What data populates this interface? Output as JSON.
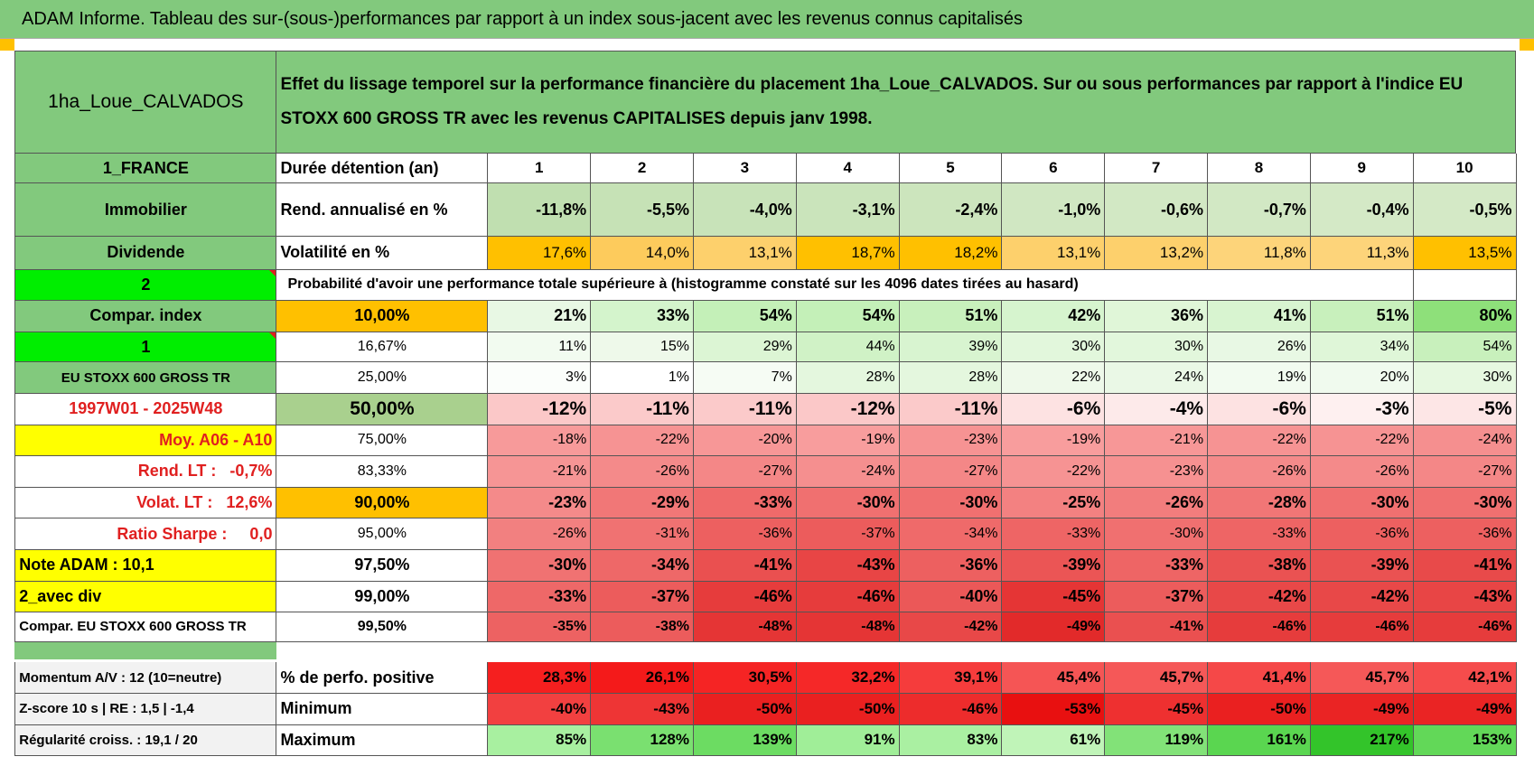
{
  "title": "ADAM Informe. Tableau des sur-(sous-)performances par rapport à un index sous-jacent avec les revenus connus capitalisés",
  "header": {
    "left": "1ha_Loue_CALVADOS",
    "text": "Effet du lissage temporel sur la performance financière du placement 1ha_Loue_CALVADOS. Sur ou sous performances par rapport à l'indice EU STOXX 600 GROSS TR avec les revenus CAPITALISES depuis janv 1998."
  },
  "rows": [
    {
      "label": "1_FRANCE",
      "name": "Durée détention (an)",
      "values": [
        1,
        2,
        3,
        4,
        5,
        6,
        7,
        8,
        9,
        10
      ]
    },
    {
      "label": "Immobilier",
      "name": "Rend. annualisé en %",
      "values": [
        "-11,8%",
        "-5,5%",
        "-4,0%",
        "-3,1%",
        "-2,4%",
        "-1,0%",
        "-0,6%",
        "-0,7%",
        "-0,4%",
        "-0,5%"
      ]
    },
    {
      "label": "Dividende",
      "name": "Volatilité en %",
      "values": [
        "17,6%",
        "14,0%",
        "13,1%",
        "18,7%",
        "18,2%",
        "13,1%",
        "13,2%",
        "11,8%",
        "11,3%",
        "13,5%"
      ]
    },
    {
      "label": "2",
      "note": "Probabilité d'avoir une performance totale supérieure à (histogramme constaté sur les 4096 dates tirées au hasard)"
    },
    {
      "label": "Compar. index",
      "name": "10,00%",
      "values": [
        "21%",
        "33%",
        "54%",
        "54%",
        "51%",
        "42%",
        "36%",
        "41%",
        "51%",
        "80%"
      ]
    },
    {
      "label": "1",
      "name": "16,67%",
      "values": [
        "11%",
        "15%",
        "29%",
        "44%",
        "39%",
        "30%",
        "30%",
        "26%",
        "34%",
        "54%"
      ]
    },
    {
      "label": "EU STOXX 600 GROSS TR",
      "name": "25,00%",
      "values": [
        "3%",
        "1%",
        "7%",
        "28%",
        "28%",
        "22%",
        "24%",
        "19%",
        "20%",
        "30%"
      ]
    },
    {
      "label": "1997W01 - 2025W48",
      "name": "50,00%",
      "values": [
        "-12%",
        "-11%",
        "-11%",
        "-12%",
        "-11%",
        "-6%",
        "-4%",
        "-6%",
        "-3%",
        "-5%"
      ]
    },
    {
      "label": "Moy. A06 - A10",
      "name": "75,00%",
      "values": [
        "-18%",
        "-22%",
        "-20%",
        "-19%",
        "-23%",
        "-19%",
        "-21%",
        "-22%",
        "-22%",
        "-24%"
      ]
    },
    {
      "label": "Rend. LT :   -0,7%",
      "name": "83,33%",
      "values": [
        "-21%",
        "-26%",
        "-27%",
        "-24%",
        "-27%",
        "-22%",
        "-23%",
        "-26%",
        "-26%",
        "-27%"
      ]
    },
    {
      "label": "Volat. LT :   12,6%",
      "name": "90,00%",
      "values": [
        "-23%",
        "-29%",
        "-33%",
        "-30%",
        "-30%",
        "-25%",
        "-26%",
        "-28%",
        "-30%",
        "-30%"
      ]
    },
    {
      "label": "Ratio Sharpe :     0,0",
      "name": "95,00%",
      "values": [
        "-26%",
        "-31%",
        "-36%",
        "-37%",
        "-34%",
        "-33%",
        "-30%",
        "-33%",
        "-36%",
        "-36%"
      ]
    },
    {
      "label": "Note ADAM : 10,1",
      "name": "97,50%",
      "values": [
        "-30%",
        "-34%",
        "-41%",
        "-43%",
        "-36%",
        "-39%",
        "-33%",
        "-38%",
        "-39%",
        "-41%"
      ]
    },
    {
      "label": "2_avec div",
      "name": "99,00%",
      "values": [
        "-33%",
        "-37%",
        "-46%",
        "-46%",
        "-40%",
        "-45%",
        "-37%",
        "-42%",
        "-42%",
        "-43%"
      ]
    },
    {
      "label": "Compar. EU STOXX 600 GROSS TR",
      "name": "99,50%",
      "values": [
        "-35%",
        "-38%",
        "-48%",
        "-48%",
        "-42%",
        "-49%",
        "-41%",
        "-46%",
        "-46%",
        "-46%"
      ]
    },
    {
      "label": "Momentum A/V : 12 (10=neutre)",
      "name": "% de perfo. positive",
      "values": [
        "28,3%",
        "26,1%",
        "30,5%",
        "32,2%",
        "39,1%",
        "45,4%",
        "45,7%",
        "41,4%",
        "45,7%",
        "42,1%"
      ]
    },
    {
      "label": "Z-score 10 s | RE : 1,5 | -1,4",
      "name": "Minimum",
      "values": [
        "-40%",
        "-43%",
        "-50%",
        "-50%",
        "-46%",
        "-53%",
        "-45%",
        "-50%",
        "-49%",
        "-49%"
      ]
    },
    {
      "label": "Régularité croiss. : 19,1 / 20",
      "name": "Maximum",
      "values": [
        "85%",
        "128%",
        "139%",
        "91%",
        "83%",
        "61%",
        "119%",
        "161%",
        "217%",
        "153%"
      ]
    }
  ]
}
